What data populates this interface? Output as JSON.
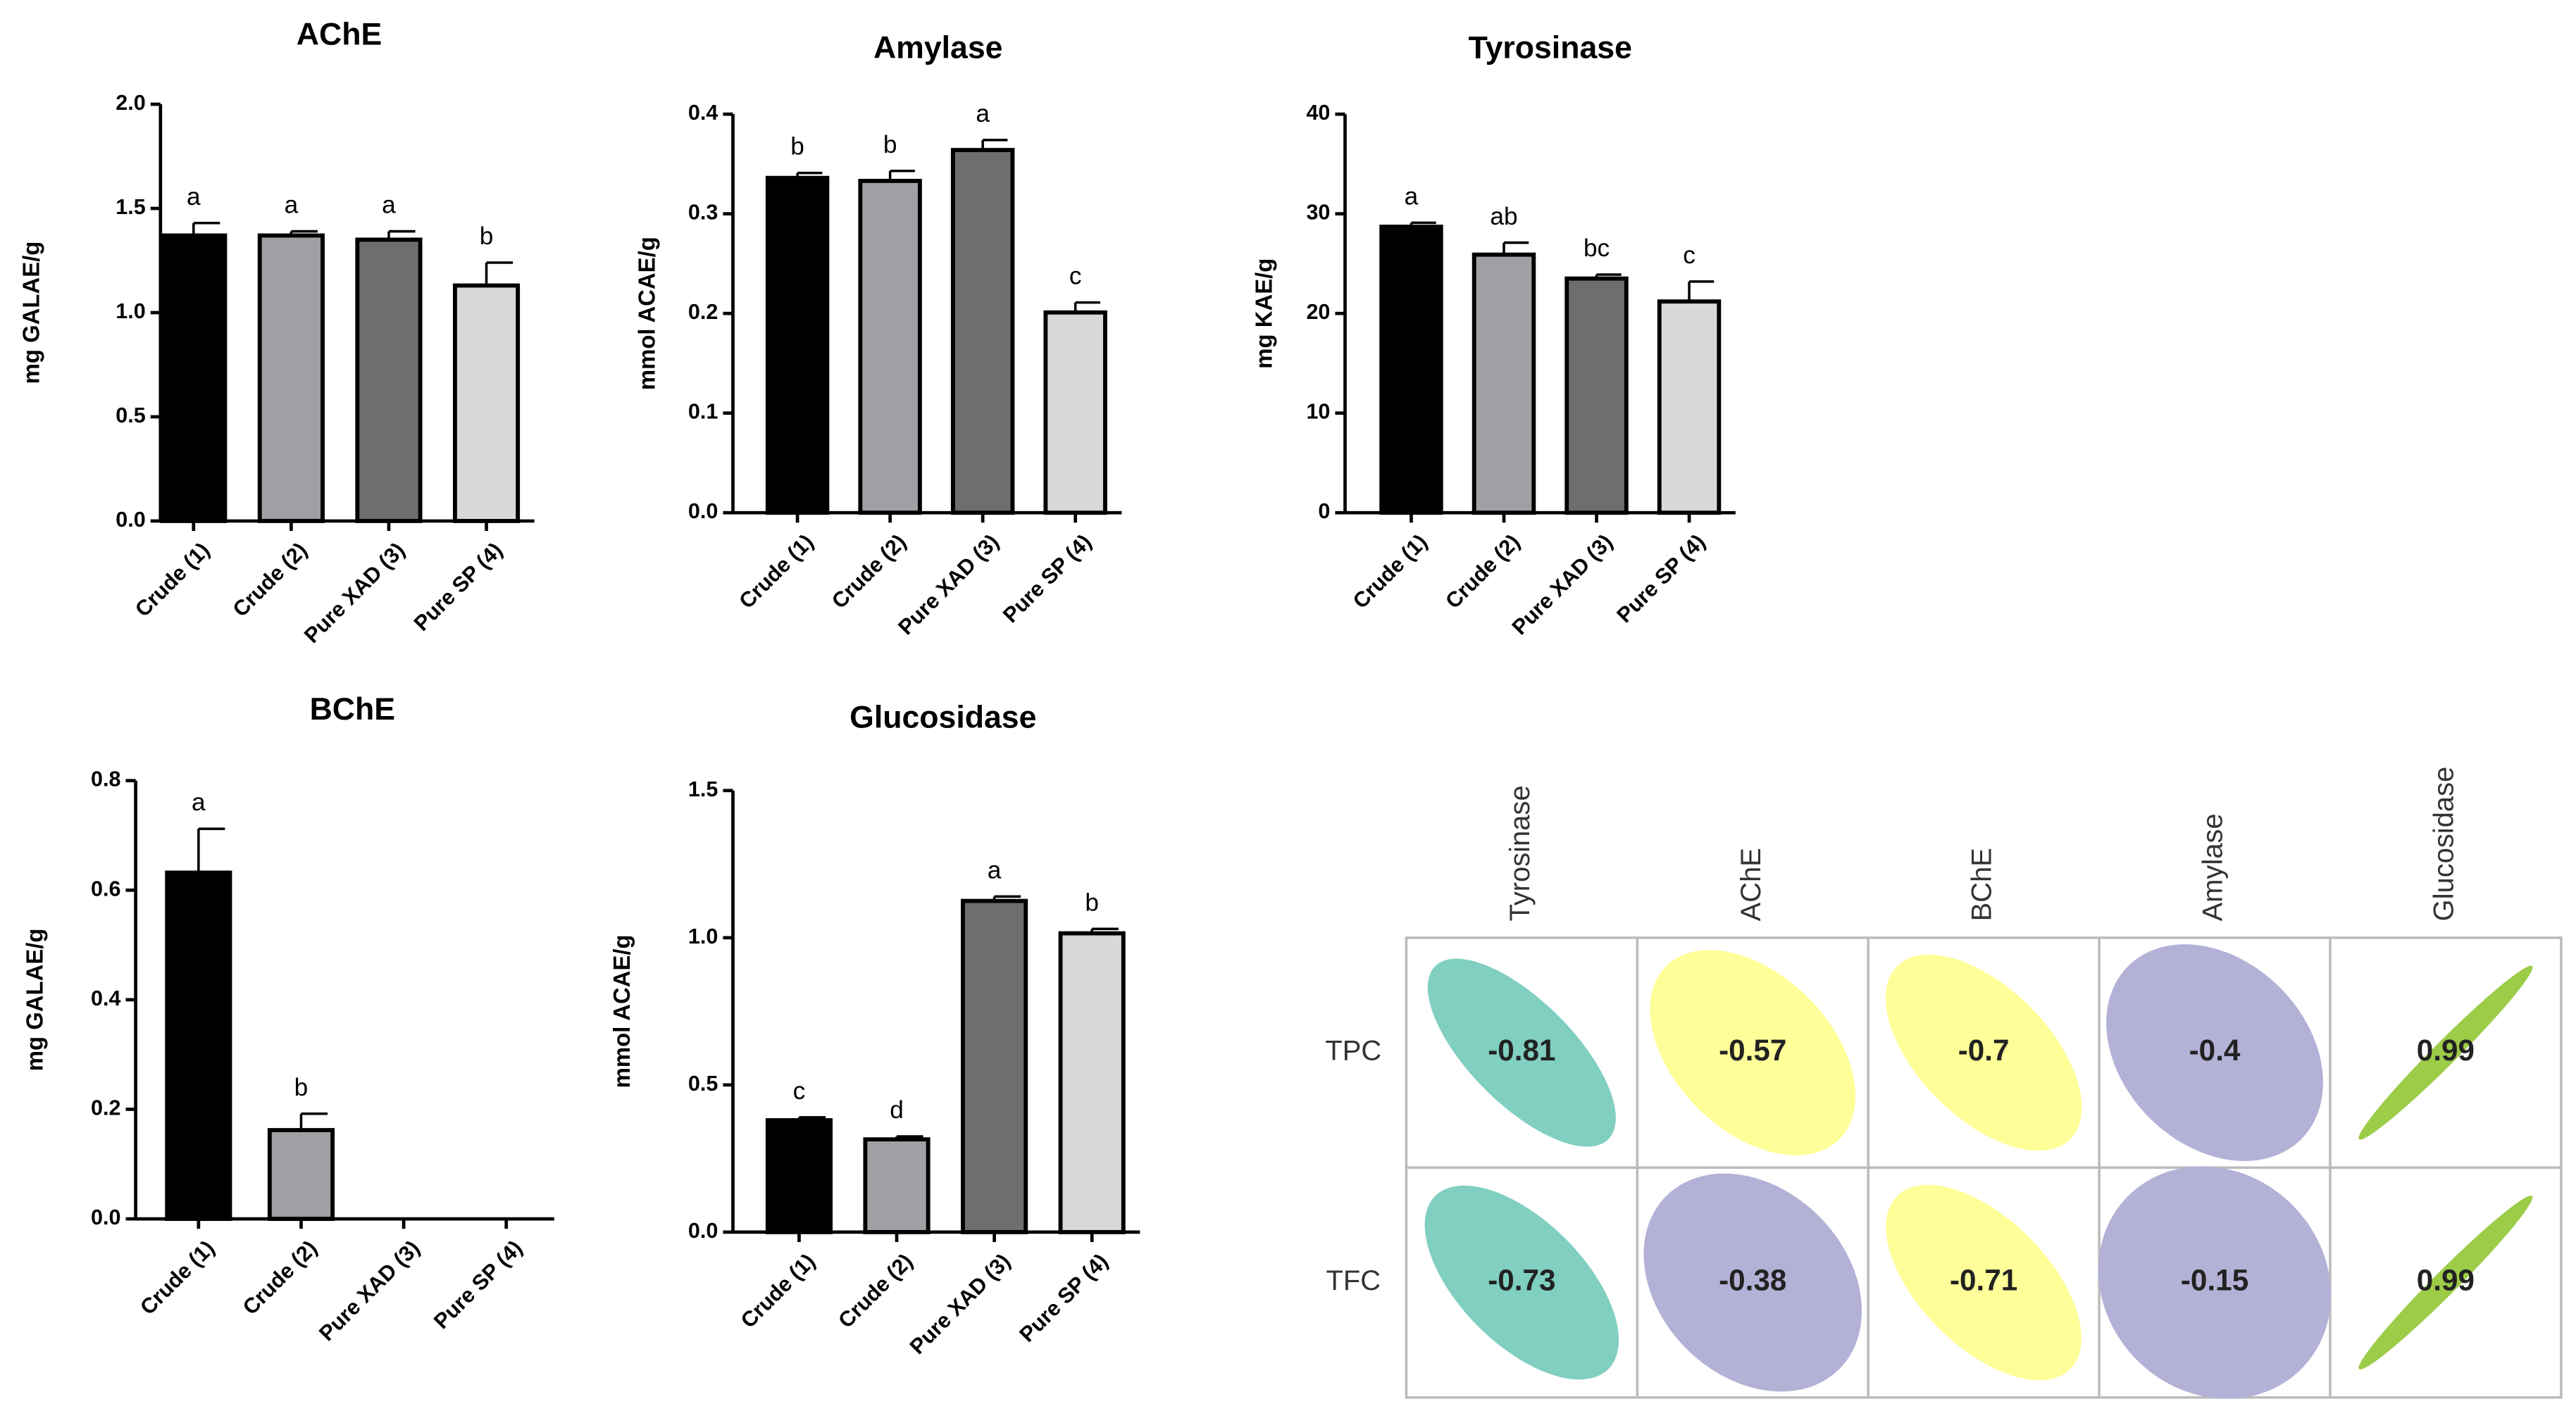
{
  "chart_data": [
    {
      "type": "bar",
      "title": "AChE",
      "y_label": "mg GALAE/g",
      "categories": [
        "Crude (1)",
        "Crude (2)",
        "Pure XAD (3)",
        "Pure SP (4)"
      ],
      "values": [
        1.37,
        1.37,
        1.35,
        1.13
      ],
      "errors": [
        0.06,
        0.02,
        0.04,
        0.11
      ],
      "annotations": [
        "a",
        "a",
        "a",
        "b"
      ],
      "colors": [
        "#000000",
        "#a0a0a4",
        "#6e6e6e",
        "#d8d8d8"
      ],
      "ylim": [
        0,
        2
      ],
      "yticks": [
        {
          "value": 0,
          "label": "0.0"
        },
        0.5,
        {
          "value": 1,
          "label": "1.0"
        },
        1.5,
        {
          "value": 2,
          "label": "2.0"
        }
      ]
    },
    {
      "type": "bar",
      "title": "Amylase",
      "y_label": "mmol ACAE/g",
      "categories": [
        "Crude (1)",
        "Crude (2)",
        "Pure XAD (3)",
        "Pure SP (4)"
      ],
      "values": [
        0.336,
        0.333,
        0.364,
        0.201
      ],
      "errors": [
        0.005,
        0.01,
        0.01,
        0.01
      ],
      "annotations": [
        "b",
        "b",
        "a",
        "c"
      ],
      "colors": [
        "#000000",
        "#a0a0a4",
        "#6e6e6e",
        "#d8d8d8"
      ],
      "ylim": [
        0,
        0.4
      ],
      "yticks": [
        {
          "value": 0,
          "label": "0.0"
        },
        0.1,
        0.2,
        0.3,
        0.4
      ]
    },
    {
      "type": "bar",
      "title": "Tyrosinase",
      "y_label": "mg KAE/g",
      "categories": [
        "Crude (1)",
        "Crude (2)",
        "Pure XAD (3)",
        "Pure SP (4)"
      ],
      "values": [
        28.7,
        25.9,
        23.5,
        21.2
      ],
      "errors": [
        0.4,
        1.2,
        0.4,
        2.0
      ],
      "annotations": [
        "a",
        "ab",
        "bc",
        "c"
      ],
      "colors": [
        "#000000",
        "#a0a0a4",
        "#6e6e6e",
        "#d8d8d8"
      ],
      "ylim": [
        0,
        40
      ],
      "yticks": [
        0,
        10,
        20,
        30,
        40
      ]
    },
    {
      "type": "bar",
      "title": "BChE",
      "y_label": "mg GALAE/g",
      "categories": [
        "Crude (1)",
        "Crude (2)",
        "Pure XAD (3)",
        "Pure SP (4)"
      ],
      "values": [
        0.632,
        0.162,
        0,
        0
      ],
      "errors": [
        0.08,
        0.03,
        0,
        0
      ],
      "annotations": [
        "a",
        "b",
        null,
        null
      ],
      "colors": [
        "#000000",
        "#a0a0a4",
        "#6e6e6e",
        "#d8d8d8"
      ],
      "ylim": [
        0,
        0.8
      ],
      "yticks": [
        {
          "value": 0,
          "label": "0.0"
        },
        0.2,
        0.4,
        0.6,
        0.8
      ]
    },
    {
      "type": "bar",
      "title": "Glucosidase",
      "y_label": "mmol ACAE/g",
      "categories": [
        "Crude (1)",
        "Crude (2)",
        "Pure XAD (3)",
        "Pure SP (4)"
      ],
      "values": [
        0.38,
        0.315,
        1.125,
        1.015
      ],
      "errors": [
        0.01,
        0.01,
        0.015,
        0.015
      ],
      "annotations": [
        "c",
        "d",
        "a",
        "b"
      ],
      "colors": [
        "#000000",
        "#a0a0a4",
        "#6e6e6e",
        "#d8d8d8"
      ],
      "ylim": [
        0,
        1.5
      ],
      "yticks": [
        {
          "value": 0,
          "label": "0.0"
        },
        0.5,
        {
          "value": 1,
          "label": "1.0"
        },
        1.5
      ]
    },
    {
      "type": "correlation",
      "columns": [
        "Tyrosinase",
        "AChE",
        "BChE",
        "Amylase",
        "Glucosidase"
      ],
      "rows": [
        "TPC",
        "TFC"
      ],
      "values": [
        [
          -0.81,
          -0.57,
          -0.7,
          -0.4,
          0.99
        ],
        [
          -0.73,
          -0.38,
          -0.71,
          -0.15,
          0.99
        ]
      ],
      "colors": [
        [
          "#80cfc0",
          "#ffff99",
          "#ffff99",
          "#b4b1d7",
          "#9ccc48"
        ],
        [
          "#80cfc0",
          "#b4b1d7",
          "#ffff99",
          "#b4b1d7",
          "#9ccc48"
        ]
      ]
    }
  ]
}
